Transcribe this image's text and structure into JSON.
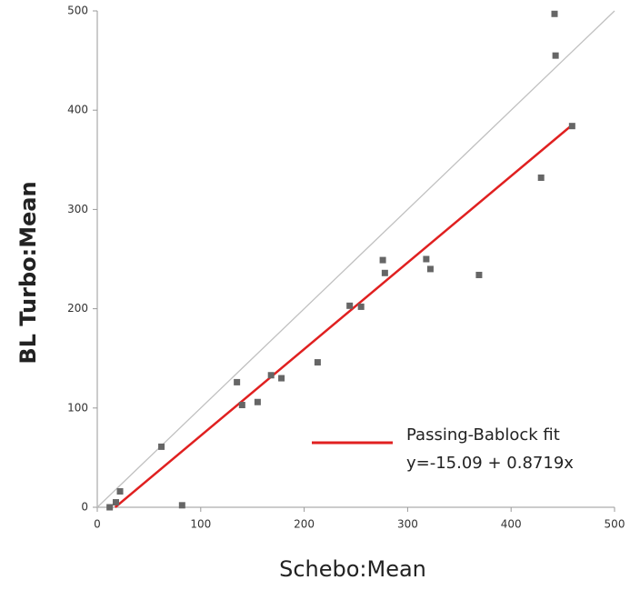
{
  "chart_data": {
    "type": "scatter",
    "x_label": "Schebo:Mean",
    "y_label": "BL Turbo:Mean",
    "xlim": [
      0,
      500
    ],
    "ylim": [
      0,
      500
    ],
    "xticks": [
      0,
      100,
      200,
      300,
      400,
      500
    ],
    "yticks": [
      0,
      100,
      200,
      300,
      400,
      500
    ],
    "axis_color": "#999999",
    "series": [
      {
        "color": "#666666",
        "kind": "points",
        "x": [
          12,
          18,
          22,
          62,
          82,
          135,
          140,
          155,
          168,
          178,
          213,
          244,
          255,
          276,
          278,
          318,
          322,
          369,
          429,
          442,
          443,
          459
        ],
        "values": [
          0,
          5,
          16,
          61,
          2,
          126,
          103,
          106,
          133,
          130,
          146,
          203,
          202,
          249,
          236,
          250,
          240,
          234,
          332,
          497,
          455,
          384
        ]
      },
      {
        "name": "Passing-Bablock fit",
        "color": "#e02020",
        "kind": "line",
        "x": [
          17.3,
          460
        ],
        "values": [
          0,
          386
        ]
      },
      {
        "color": "#c0c0c0",
        "kind": "line",
        "x": [
          0,
          500
        ],
        "values": [
          0,
          500
        ]
      }
    ],
    "annotation": "y=-15.09 + 0.8719x"
  }
}
